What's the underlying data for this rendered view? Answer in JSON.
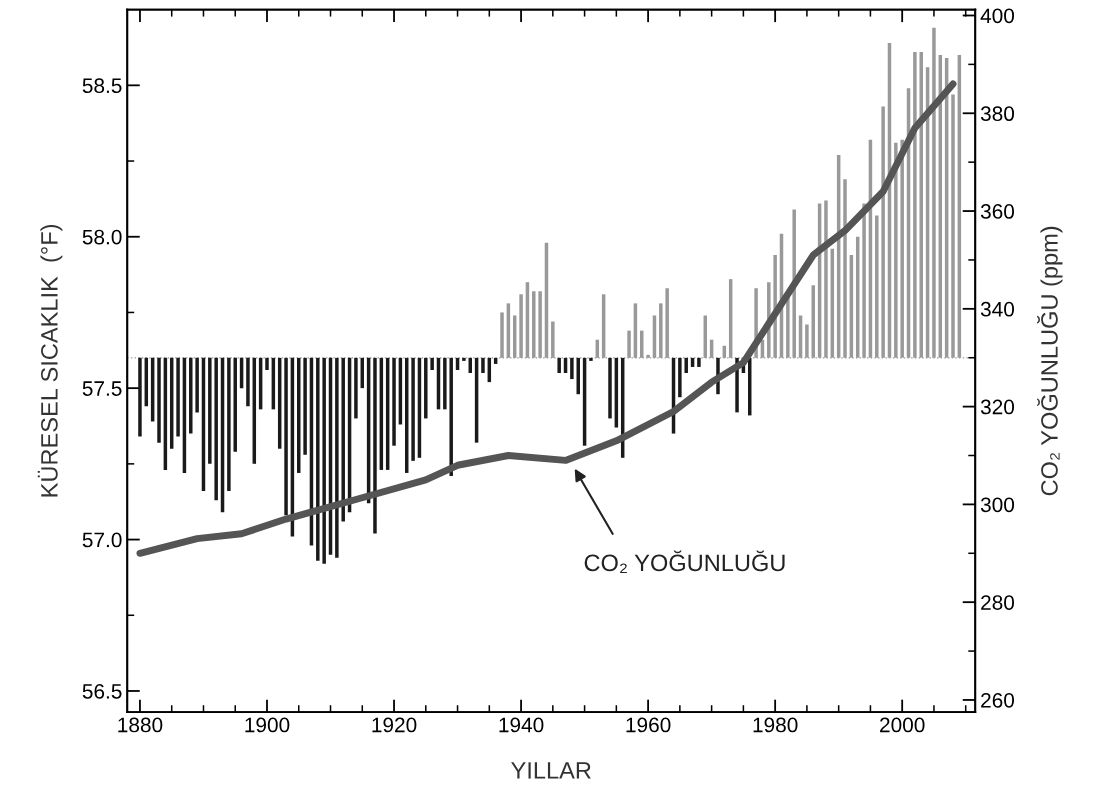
{
  "chart_data": {
    "type": "bar",
    "xlabel": "YILLAR",
    "ylabel": "KÜRESEL SICAKLIK  (°F)",
    "y2label": "CO₂ YOĞUNLUĞU (ppm)",
    "x": [
      1880,
      1881,
      1882,
      1883,
      1884,
      1885,
      1886,
      1887,
      1888,
      1889,
      1890,
      1891,
      1892,
      1893,
      1894,
      1895,
      1896,
      1897,
      1898,
      1899,
      1900,
      1901,
      1902,
      1903,
      1904,
      1905,
      1906,
      1907,
      1908,
      1909,
      1910,
      1911,
      1912,
      1913,
      1914,
      1915,
      1916,
      1917,
      1918,
      1919,
      1920,
      1921,
      1922,
      1923,
      1924,
      1925,
      1926,
      1927,
      1928,
      1929,
      1930,
      1931,
      1932,
      1933,
      1934,
      1935,
      1936,
      1937,
      1938,
      1939,
      1940,
      1941,
      1942,
      1943,
      1944,
      1945,
      1946,
      1947,
      1948,
      1949,
      1950,
      1951,
      1952,
      1953,
      1954,
      1955,
      1956,
      1957,
      1958,
      1959,
      1960,
      1961,
      1962,
      1963,
      1964,
      1965,
      1966,
      1967,
      1968,
      1969,
      1970,
      1971,
      1972,
      1973,
      1974,
      1975,
      1976,
      1977,
      1978,
      1979,
      1980,
      1981,
      1982,
      1983,
      1984,
      1985,
      1986,
      1987,
      1988,
      1989,
      1990,
      1991,
      1992,
      1993,
      1994,
      1995,
      1996,
      1997,
      1998,
      1999,
      2000,
      2001,
      2002,
      2003,
      2004,
      2005,
      2006,
      2007,
      2008,
      2009
    ],
    "base": [
      57.6,
      57.6,
      57.6,
      57.6,
      57.6,
      57.6,
      57.6,
      57.6,
      57.6,
      57.6,
      57.6,
      57.6,
      57.6,
      57.6,
      57.6,
      57.6,
      57.6,
      57.6,
      57.6,
      57.6,
      57.6,
      57.6,
      57.6,
      57.6,
      57.6,
      57.6,
      57.6,
      57.6,
      57.6,
      57.6,
      57.6,
      57.6,
      57.6,
      57.6,
      57.6,
      57.6,
      57.6,
      57.6,
      57.6,
      57.6,
      57.6,
      57.6,
      57.6,
      57.6,
      57.6,
      57.6,
      57.6,
      57.6,
      57.6,
      57.6,
      57.6,
      57.6,
      57.6,
      57.6,
      57.6,
      57.6,
      57.6,
      57.6,
      57.6,
      57.6,
      57.6,
      57.6,
      57.6,
      57.6,
      57.6,
      57.6,
      57.6,
      57.6,
      57.6,
      57.6,
      57.6,
      57.6,
      57.6,
      57.6,
      57.6,
      57.6,
      57.6,
      57.6,
      57.6,
      57.6,
      57.6,
      57.6,
      57.6,
      57.6,
      57.6,
      57.6,
      57.6,
      57.6,
      57.6,
      57.6,
      57.6,
      57.6,
      57.6,
      57.6,
      57.6,
      57.6,
      57.6,
      57.6,
      57.6,
      57.6,
      57.6,
      57.6,
      57.6,
      57.6,
      57.6,
      57.6,
      57.6,
      57.6,
      57.6,
      57.6,
      57.6,
      57.6,
      57.6,
      57.6,
      57.6,
      57.6,
      57.6,
      57.6,
      57.6,
      57.6,
      57.6,
      57.6,
      57.6,
      57.6,
      57.6,
      57.6,
      57.6,
      57.6,
      57.6,
      57.6
    ],
    "values": [
      -0.26,
      -0.16,
      -0.21,
      -0.28,
      -0.37,
      -0.3,
      -0.26,
      -0.38,
      -0.25,
      -0.18,
      -0.44,
      -0.35,
      -0.47,
      -0.51,
      -0.44,
      -0.31,
      -0.1,
      -0.16,
      -0.35,
      -0.17,
      -0.04,
      -0.17,
      -0.3,
      -0.52,
      -0.59,
      -0.38,
      -0.32,
      -0.62,
      -0.67,
      -0.68,
      -0.65,
      -0.66,
      -0.54,
      -0.51,
      -0.2,
      -0.1,
      -0.48,
      -0.58,
      -0.37,
      -0.37,
      -0.29,
      -0.22,
      -0.38,
      -0.34,
      -0.33,
      -0.2,
      -0.04,
      -0.17,
      -0.17,
      -0.39,
      -0.04,
      -0.01,
      -0.05,
      -0.28,
      -0.05,
      -0.08,
      -0.02,
      0.15,
      0.18,
      0.14,
      0.21,
      0.25,
      0.22,
      0.22,
      0.38,
      0.12,
      -0.05,
      -0.05,
      -0.07,
      -0.12,
      -0.29,
      -0.01,
      0.06,
      0.21,
      -0.2,
      -0.23,
      -0.33,
      0.09,
      0.18,
      0.09,
      0.01,
      0.14,
      0.18,
      0.23,
      -0.25,
      -0.13,
      -0.05,
      -0.03,
      -0.03,
      0.14,
      0.06,
      -0.12,
      0.04,
      0.26,
      -0.18,
      -0.05,
      -0.19,
      0.23,
      0.06,
      0.25,
      0.34,
      0.41,
      0.21,
      0.49,
      0.14,
      0.11,
      0.24,
      0.51,
      0.52,
      0.36,
      0.67,
      0.59,
      0.34,
      0.4,
      0.51,
      0.72,
      0.47,
      0.83,
      1.04,
      0.71,
      0.72,
      0.89,
      1.01,
      1.01,
      0.96,
      1.09,
      1.0,
      0.99,
      0.87,
      1.0
    ],
    "colors": [
      "#1a1a1a",
      "#1a1a1a",
      "#1a1a1a",
      "#1a1a1a",
      "#1a1a1a",
      "#1a1a1a",
      "#1a1a1a",
      "#1a1a1a",
      "#1a1a1a",
      "#1a1a1a",
      "#1a1a1a",
      "#1a1a1a",
      "#1a1a1a",
      "#1a1a1a",
      "#1a1a1a",
      "#1a1a1a",
      "#1a1a1a",
      "#1a1a1a",
      "#1a1a1a",
      "#1a1a1a",
      "#1a1a1a",
      "#1a1a1a",
      "#1a1a1a",
      "#1a1a1a",
      "#1a1a1a",
      "#1a1a1a",
      "#1a1a1a",
      "#1a1a1a",
      "#1a1a1a",
      "#1a1a1a",
      "#1a1a1a",
      "#1a1a1a",
      "#1a1a1a",
      "#1a1a1a",
      "#1a1a1a",
      "#1a1a1a",
      "#1a1a1a",
      "#1a1a1a",
      "#1a1a1a",
      "#1a1a1a",
      "#1a1a1a",
      "#1a1a1a",
      "#1a1a1a",
      "#1a1a1a",
      "#1a1a1a",
      "#1a1a1a",
      "#1a1a1a",
      "#1a1a1a",
      "#1a1a1a",
      "#1a1a1a",
      "#1a1a1a",
      "#1a1a1a",
      "#1a1a1a",
      "#1a1a1a",
      "#1a1a1a",
      "#1a1a1a",
      "#1a1a1a",
      "#999999",
      "#999999",
      "#999999",
      "#999999",
      "#999999",
      "#999999",
      "#999999",
      "#999999",
      "#999999",
      "#1a1a1a",
      "#1a1a1a",
      "#1a1a1a",
      "#1a1a1a",
      "#1a1a1a",
      "#1a1a1a",
      "#999999",
      "#999999",
      "#1a1a1a",
      "#1a1a1a",
      "#1a1a1a",
      "#999999",
      "#999999",
      "#999999",
      "#999999",
      "#999999",
      "#999999",
      "#999999",
      "#1a1a1a",
      "#1a1a1a",
      "#1a1a1a",
      "#1a1a1a",
      "#1a1a1a",
      "#999999",
      "#999999",
      "#1a1a1a",
      "#999999",
      "#999999",
      "#1a1a1a",
      "#1a1a1a",
      "#1a1a1a",
      "#999999",
      "#999999",
      "#999999",
      "#999999",
      "#999999",
      "#999999",
      "#999999",
      "#999999",
      "#999999",
      "#999999",
      "#999999",
      "#999999",
      "#999999",
      "#999999",
      "#999999",
      "#999999",
      "#999999",
      "#999999",
      "#999999",
      "#999999",
      "#999999",
      "#999999",
      "#999999",
      "#999999",
      "#999999",
      "#999999",
      "#999999",
      "#999999",
      "#999999",
      "#999999",
      "#999999",
      "#999999",
      "#999999"
    ],
    "series": [
      {
        "type": "line",
        "axis": "y2",
        "color": "#555555",
        "x": [
          1880,
          1889,
          1896,
          1903,
          1914,
          1925,
          1930,
          1938,
          1947,
          1955,
          1964,
          1970,
          1975,
          1979,
          1981,
          1986,
          1991,
          1997,
          2002,
          2008
        ],
        "values": [
          290,
          293,
          294,
          297,
          301,
          305,
          308,
          310,
          309,
          313,
          319,
          325,
          329,
          337,
          341,
          351,
          356,
          364,
          377,
          386
        ]
      }
    ],
    "ref_lines": [
      {
        "axis": "y",
        "value": 57.6,
        "color": "#999999",
        "line_style": "dotted"
      }
    ],
    "annotations": [
      "CO₂ YOĞUNLUĞU"
    ],
    "xlim": [
      1878,
      2011.5
    ],
    "ylim": [
      56.43,
      58.75
    ],
    "y2lim": [
      257.5,
      401.2
    ],
    "xticks": [
      1880,
      {
        "value": 1885,
        "label": null
      },
      {
        "value": 1890,
        "label": null
      },
      {
        "value": 1895,
        "label": null
      },
      1900,
      {
        "value": 1905,
        "label": null
      },
      {
        "value": 1910,
        "label": null
      },
      {
        "value": 1915,
        "label": null
      },
      1920,
      {
        "value": 1925,
        "label": null
      },
      {
        "value": 1930,
        "label": null
      },
      {
        "value": 1935,
        "label": null
      },
      1940,
      {
        "value": 1945,
        "label": null
      },
      {
        "value": 1950,
        "label": null
      },
      {
        "value": 1955,
        "label": null
      },
      1960,
      {
        "value": 1965,
        "label": null
      },
      {
        "value": 1970,
        "label": null
      },
      {
        "value": 1975,
        "label": null
      },
      1980,
      {
        "value": 1985,
        "label": null
      },
      {
        "value": 1990,
        "label": null
      },
      {
        "value": 1995,
        "label": null
      },
      2000,
      {
        "value": 2005,
        "label": null
      },
      {
        "value": 2010,
        "label": null
      }
    ],
    "yticks": [
      56.5,
      {
        "value": 56.75,
        "label": null
      },
      {
        "value": 57,
        "label": "57.0"
      },
      {
        "value": 57.25,
        "label": null
      },
      57.5,
      {
        "value": 57.75,
        "label": null
      },
      {
        "value": 58,
        "label": "58.0"
      },
      {
        "value": 58.25,
        "label": null
      },
      58.5
    ],
    "y2ticks": [
      260,
      {
        "value": 270,
        "label": null
      },
      280,
      {
        "value": 290,
        "label": null
      },
      300,
      {
        "value": 310,
        "label": null
      },
      320,
      {
        "value": 330,
        "label": null
      },
      340,
      {
        "value": 350,
        "label": null
      },
      360,
      {
        "value": 370,
        "label": null
      },
      380,
      {
        "value": 390,
        "label": null
      },
      400
    ],
    "grid": false,
    "legend": false
  }
}
